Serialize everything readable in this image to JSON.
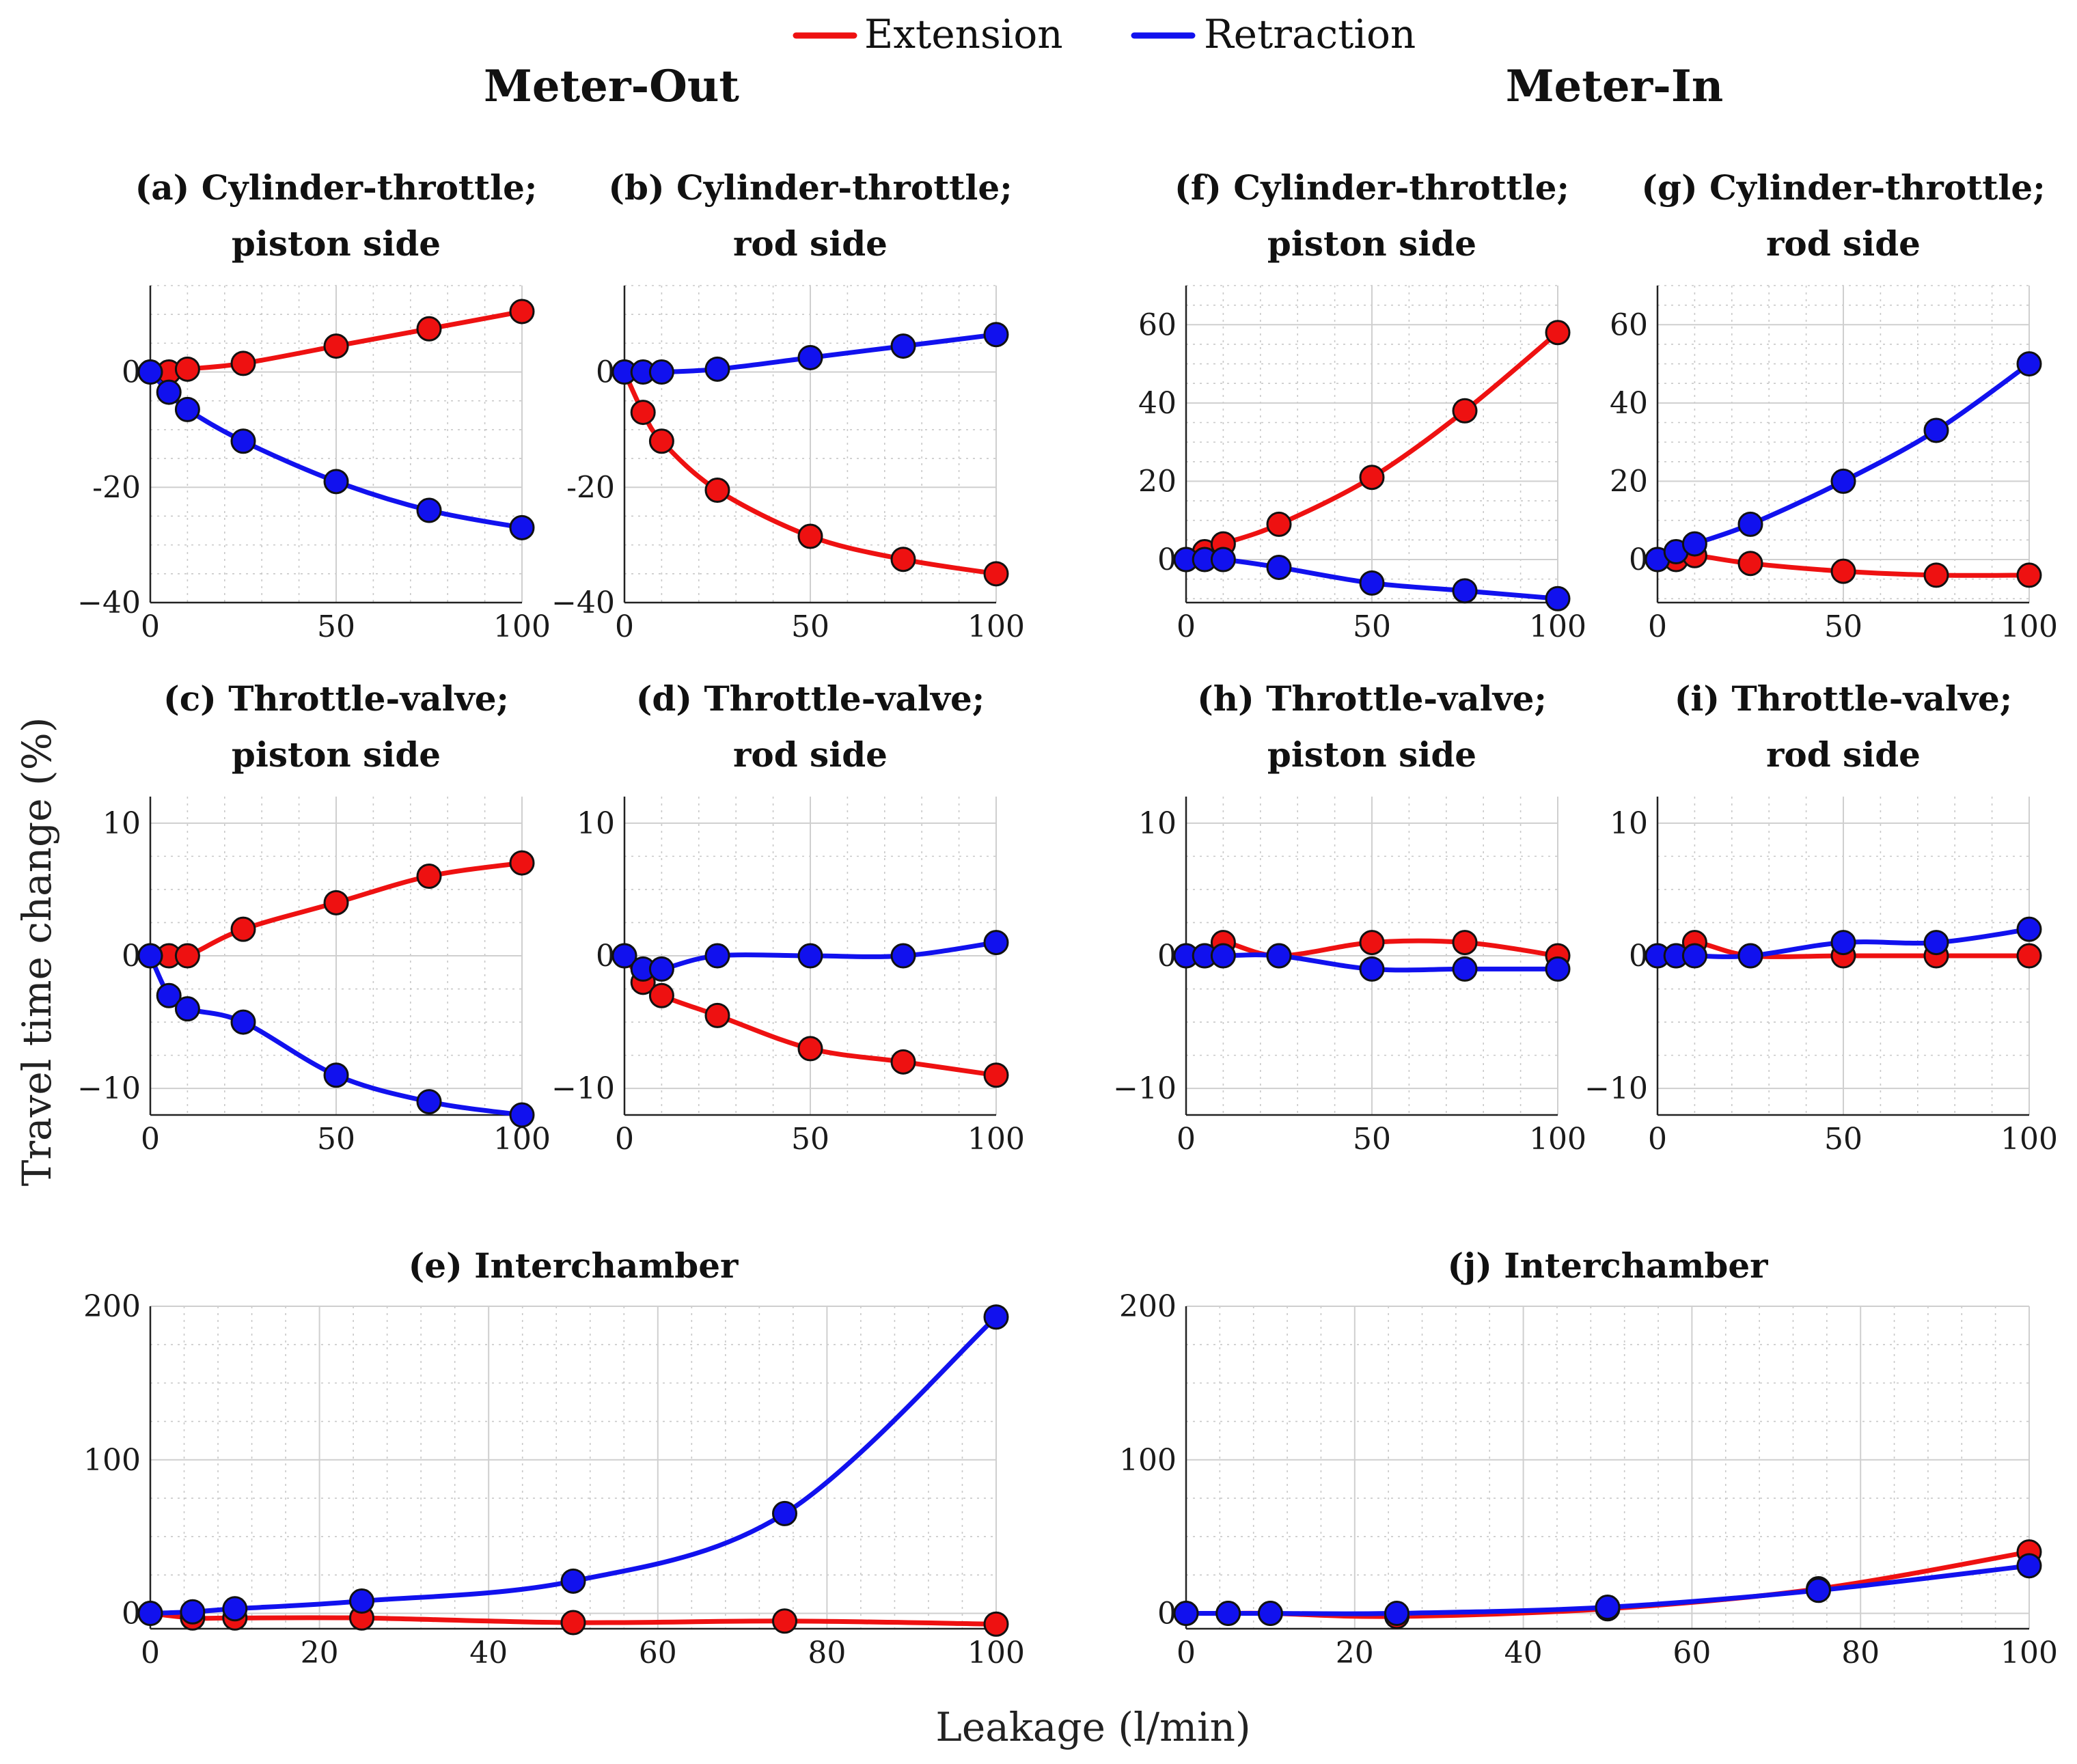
{
  "legend": {
    "entries": [
      {
        "name": "Extension",
        "color": "#ee1111"
      },
      {
        "name": "Retraction",
        "color": "#1111ee"
      }
    ]
  },
  "column_titles": {
    "left": "Meter-Out",
    "right": "Meter-In"
  },
  "xlabel": "Leakage (l/min)",
  "ylabel": "Travel time change (%)",
  "chart_data": [
    {
      "id": "a",
      "type": "line",
      "title": [
        "(a) Cylinder-throttle;",
        "piston side"
      ],
      "xlim": [
        0,
        100
      ],
      "ylim": [
        -40,
        15
      ],
      "xticks": [
        0,
        50,
        100
      ],
      "yticks": [
        0,
        -20,
        -40
      ],
      "ytick_labels": [
        "0",
        "-20",
        "−40"
      ],
      "x": [
        0,
        5,
        10,
        25,
        50,
        75,
        100
      ],
      "series": [
        {
          "name": "Extension",
          "values": [
            0,
            0,
            0.5,
            1.5,
            4.5,
            7.5,
            10.5
          ]
        },
        {
          "name": "Retraction",
          "values": [
            0,
            -3.5,
            -6.5,
            -12,
            -19,
            -24,
            -27
          ]
        }
      ]
    },
    {
      "id": "b",
      "type": "line",
      "title": [
        "(b) Cylinder-throttle;",
        "rod side"
      ],
      "xlim": [
        0,
        100
      ],
      "ylim": [
        -40,
        15
      ],
      "xticks": [
        0,
        50,
        100
      ],
      "yticks": [
        0,
        -20,
        -40
      ],
      "ytick_labels": [
        "0",
        "-20",
        "−40"
      ],
      "x": [
        0,
        5,
        10,
        25,
        50,
        75,
        100
      ],
      "series": [
        {
          "name": "Extension",
          "values": [
            0,
            -7,
            -12,
            -20.5,
            -28.5,
            -32.5,
            -35
          ]
        },
        {
          "name": "Retraction",
          "values": [
            0,
            0,
            0,
            0.5,
            2.5,
            4.5,
            6.5
          ]
        }
      ]
    },
    {
      "id": "f",
      "type": "line",
      "title": [
        "(f) Cylinder-throttle;",
        "piston side"
      ],
      "xlim": [
        0,
        100
      ],
      "ylim": [
        -11,
        70
      ],
      "xticks": [
        0,
        50,
        100
      ],
      "yticks": [
        0,
        20,
        40,
        60
      ],
      "ytick_labels": [
        "0",
        "20",
        "40",
        "60"
      ],
      "x": [
        0,
        5,
        10,
        25,
        50,
        75,
        100
      ],
      "series": [
        {
          "name": "Extension",
          "values": [
            0,
            2,
            4,
            9,
            21,
            38,
            58
          ]
        },
        {
          "name": "Retraction",
          "values": [
            0,
            0,
            0,
            -2,
            -6,
            -8,
            -10
          ]
        }
      ]
    },
    {
      "id": "g",
      "type": "line",
      "title": [
        "(g) Cylinder-throttle;",
        "rod side"
      ],
      "xlim": [
        0,
        100
      ],
      "ylim": [
        -11,
        70
      ],
      "xticks": [
        0,
        50,
        100
      ],
      "yticks": [
        0,
        20,
        40,
        60
      ],
      "ytick_labels": [
        "0",
        "20",
        "40",
        "60"
      ],
      "x": [
        0,
        5,
        10,
        25,
        50,
        75,
        100
      ],
      "series": [
        {
          "name": "Extension",
          "values": [
            0,
            0,
            1,
            -1,
            -3,
            -4,
            -4
          ]
        },
        {
          "name": "Retraction",
          "values": [
            0,
            2,
            4,
            9,
            20,
            33,
            50
          ]
        }
      ]
    },
    {
      "id": "c",
      "type": "line",
      "title": [
        "(c) Throttle-valve;",
        "piston side"
      ],
      "xlim": [
        0,
        100
      ],
      "ylim": [
        -12,
        12
      ],
      "xticks": [
        0,
        50,
        100
      ],
      "yticks": [
        10,
        0,
        -10
      ],
      "ytick_labels": [
        "10",
        "0",
        "−10"
      ],
      "x": [
        0,
        5,
        10,
        25,
        50,
        75,
        100
      ],
      "series": [
        {
          "name": "Extension",
          "values": [
            0,
            0,
            0,
            2,
            4,
            6,
            7
          ]
        },
        {
          "name": "Retraction",
          "values": [
            0,
            -3,
            -4,
            -5,
            -9,
            -11,
            -12
          ]
        }
      ]
    },
    {
      "id": "d",
      "type": "line",
      "title": [
        "(d) Throttle-valve;",
        "rod side"
      ],
      "xlim": [
        0,
        100
      ],
      "ylim": [
        -12,
        12
      ],
      "xticks": [
        0,
        50,
        100
      ],
      "yticks": [
        10,
        0,
        -10
      ],
      "ytick_labels": [
        "10",
        "0",
        "−10"
      ],
      "x": [
        0,
        5,
        10,
        25,
        50,
        75,
        100
      ],
      "series": [
        {
          "name": "Extension",
          "values": [
            0,
            -2,
            -3,
            -4.5,
            -7,
            -8,
            -9
          ]
        },
        {
          "name": "Retraction",
          "values": [
            0,
            -1,
            -1,
            0,
            0,
            0,
            1
          ]
        }
      ]
    },
    {
      "id": "h",
      "type": "line",
      "title": [
        "(h) Throttle-valve;",
        "piston side"
      ],
      "xlim": [
        0,
        100
      ],
      "ylim": [
        -12,
        12
      ],
      "xticks": [
        0,
        50,
        100
      ],
      "yticks": [
        10,
        0,
        -10
      ],
      "ytick_labels": [
        "10",
        "0",
        "−10"
      ],
      "x": [
        0,
        5,
        10,
        25,
        50,
        75,
        100
      ],
      "series": [
        {
          "name": "Extension",
          "values": [
            0,
            0,
            1,
            0,
            1,
            1,
            0
          ]
        },
        {
          "name": "Retraction",
          "values": [
            0,
            0,
            0,
            0,
            -1,
            -1,
            -1
          ]
        }
      ]
    },
    {
      "id": "i",
      "type": "line",
      "title": [
        "(i) Throttle-valve;",
        "rod side"
      ],
      "xlim": [
        0,
        100
      ],
      "ylim": [
        -12,
        12
      ],
      "xticks": [
        0,
        50,
        100
      ],
      "yticks": [
        10,
        0,
        -10
      ],
      "ytick_labels": [
        "10",
        "0",
        "−10"
      ],
      "x": [
        0,
        5,
        10,
        25,
        50,
        75,
        100
      ],
      "series": [
        {
          "name": "Extension",
          "values": [
            0,
            0,
            1,
            0,
            0,
            0,
            0
          ]
        },
        {
          "name": "Retraction",
          "values": [
            0,
            0,
            0,
            0,
            1,
            1,
            2
          ]
        }
      ]
    },
    {
      "id": "e",
      "type": "line",
      "title": [
        "(e) Interchamber"
      ],
      "xlim": [
        0,
        100
      ],
      "ylim": [
        -10,
        200
      ],
      "xticks": [
        0,
        20,
        40,
        60,
        80,
        100
      ],
      "yticks": [
        0,
        100,
        200
      ],
      "ytick_labels": [
        "0",
        "100",
        "200"
      ],
      "x": [
        0,
        5,
        10,
        25,
        50,
        75,
        100
      ],
      "series": [
        {
          "name": "Extension",
          "values": [
            0,
            -3,
            -3,
            -3,
            -6,
            -5,
            -7
          ]
        },
        {
          "name": "Retraction",
          "values": [
            0,
            1,
            3,
            8,
            21,
            65,
            193
          ]
        }
      ]
    },
    {
      "id": "j",
      "type": "line",
      "title": [
        "(j) Interchamber"
      ],
      "xlim": [
        0,
        100
      ],
      "ylim": [
        -10,
        200
      ],
      "xticks": [
        0,
        20,
        40,
        60,
        80,
        100
      ],
      "yticks": [
        0,
        100,
        200
      ],
      "ytick_labels": [
        "0",
        "100",
        "200"
      ],
      "x": [
        0,
        5,
        10,
        25,
        50,
        75,
        100
      ],
      "series": [
        {
          "name": "Extension",
          "values": [
            0,
            0,
            0,
            -2,
            3,
            16,
            40
          ]
        },
        {
          "name": "Retraction",
          "values": [
            0,
            0,
            0,
            0,
            4,
            15,
            31
          ]
        }
      ]
    }
  ]
}
